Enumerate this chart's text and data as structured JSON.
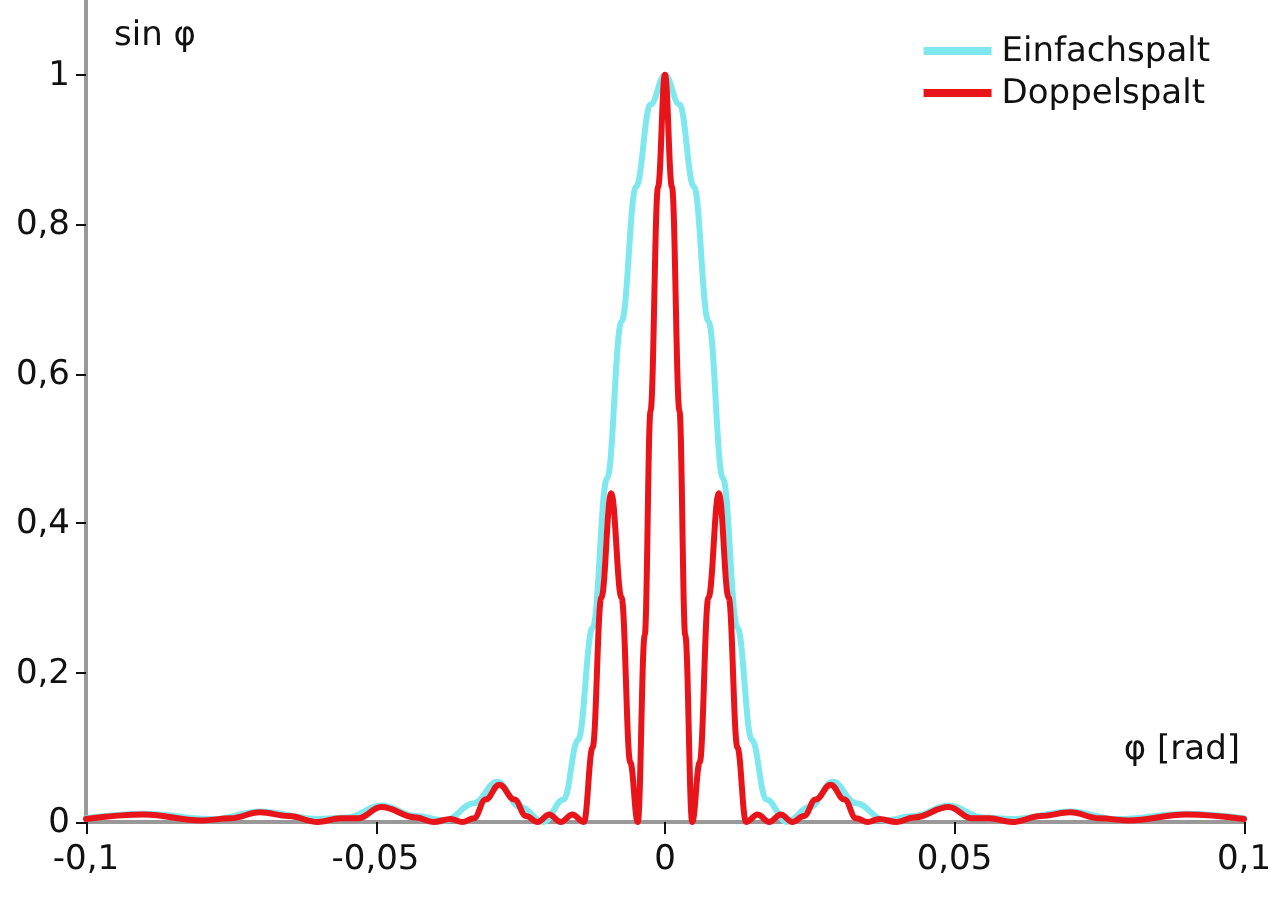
{
  "chart_data": {
    "type": "line",
    "xlabel": "φ [rad]",
    "ylabel": "sin φ",
    "xlim": [
      -0.1,
      0.1
    ],
    "xticks": [
      {
        "value": -0.1,
        "label": "-0,1"
      },
      {
        "value": -0.05,
        "label": "-0,05"
      },
      {
        "value": 0,
        "label": "0"
      },
      {
        "value": 0.05,
        "label": "0,05"
      },
      {
        "value": 0.1,
        "label": "0,1"
      }
    ],
    "ylim": [
      0,
      1.1
    ],
    "yticks": [
      {
        "value": 0,
        "label": "0"
      },
      {
        "value": 0.2,
        "label": "0,2"
      },
      {
        "value": 0.4,
        "label": "0,4"
      },
      {
        "value": 0.6,
        "label": "0,6"
      },
      {
        "value": 0.8,
        "label": "0,8"
      },
      {
        "value": 1,
        "label": "1"
      }
    ],
    "grid": false,
    "legend": "top right",
    "marker": "none",
    "line_style": "solid",
    "series": [
      {
        "name": "Einfachspalt",
        "color": "#7fe8ee",
        "x": [
          -0.1,
          -0.09,
          -0.078,
          -0.07,
          -0.06,
          -0.055,
          -0.049,
          -0.043,
          -0.038,
          -0.033,
          -0.029,
          -0.025,
          -0.021,
          -0.0175,
          -0.015,
          -0.0125,
          -0.01,
          -0.0075,
          -0.005,
          -0.0025,
          0,
          0.0025,
          0.005,
          0.0075,
          0.01,
          0.0125,
          0.015,
          0.0175,
          0.021,
          0.025,
          0.029,
          0.033,
          0.038,
          0.043,
          0.049,
          0.055,
          0.06,
          0.07,
          0.078,
          0.09,
          0.1
        ],
        "values": [
          0.005,
          0.011,
          0.004,
          0.014,
          0.004,
          0.006,
          0.022,
          0.008,
          0.002,
          0.025,
          0.054,
          0.02,
          0,
          0.03,
          0.11,
          0.26,
          0.46,
          0.67,
          0.85,
          0.96,
          1,
          0.96,
          0.85,
          0.67,
          0.46,
          0.26,
          0.11,
          0.03,
          0,
          0.02,
          0.054,
          0.025,
          0.002,
          0.008,
          0.022,
          0.006,
          0.004,
          0.014,
          0.004,
          0.011,
          0.005
        ]
      },
      {
        "name": "Doppelspalt",
        "color": "#e8141a",
        "x": [
          -0.1,
          -0.09,
          -0.08,
          -0.075,
          -0.07,
          -0.065,
          -0.06,
          -0.056,
          -0.053,
          -0.049,
          -0.043,
          -0.04,
          -0.037,
          -0.035,
          -0.033,
          -0.031,
          -0.0286,
          -0.026,
          -0.024,
          -0.022,
          -0.02,
          -0.018,
          -0.016,
          -0.014,
          -0.0125,
          -0.011,
          -0.0093,
          -0.0075,
          -0.006,
          -0.0047,
          -0.0035,
          -0.0025,
          -0.0012,
          0,
          0.0012,
          0.0025,
          0.0035,
          0.0047,
          0.006,
          0.0075,
          0.0093,
          0.011,
          0.0125,
          0.014,
          0.016,
          0.018,
          0.02,
          0.022,
          0.024,
          0.026,
          0.0286,
          0.031,
          0.033,
          0.035,
          0.037,
          0.04,
          0.043,
          0.049,
          0.053,
          0.056,
          0.06,
          0.065,
          0.07,
          0.075,
          0.08,
          0.09,
          0.1
        ],
        "values": [
          0.004,
          0.01,
          0.002,
          0.005,
          0.013,
          0.008,
          0,
          0.005,
          0.005,
          0.02,
          0.006,
          0,
          0.004,
          0,
          0.005,
          0.03,
          0.05,
          0.03,
          0.008,
          0,
          0.01,
          0,
          0.01,
          0,
          0.1,
          0.3,
          0.44,
          0.3,
          0.08,
          0,
          0.25,
          0.55,
          0.85,
          1,
          0.85,
          0.55,
          0.25,
          0,
          0.08,
          0.3,
          0.44,
          0.3,
          0.1,
          0,
          0.01,
          0,
          0.01,
          0,
          0.008,
          0.03,
          0.05,
          0.03,
          0.005,
          0,
          0.004,
          0,
          0.006,
          0.02,
          0.005,
          0.005,
          0,
          0.008,
          0.013,
          0.005,
          0.002,
          0.01,
          0.004
        ]
      }
    ]
  }
}
